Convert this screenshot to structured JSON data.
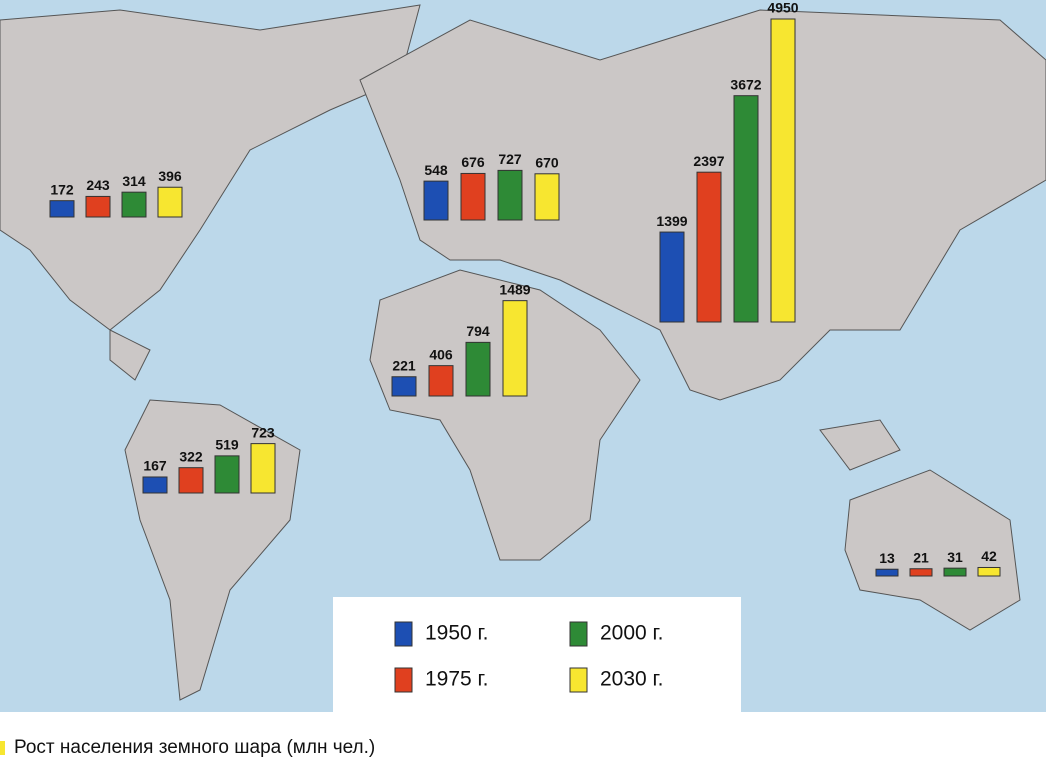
{
  "chart_data": {
    "type": "bar",
    "title": "Рост населения земного шара (млн чел.)",
    "series": [
      {
        "name": "1950 г.",
        "color": "#1d4fb3",
        "values": [
          172,
          548,
          221,
          167,
          1399,
          13
        ]
      },
      {
        "name": "1975 г.",
        "color": "#e0401f",
        "values": [
          243,
          676,
          406,
          322,
          2397,
          21
        ]
      },
      {
        "name": "2000 г.",
        "color": "#2e8a36",
        "values": [
          314,
          727,
          794,
          519,
          3672,
          31
        ]
      },
      {
        "name": "2030 г.",
        "color": "#f7e630",
        "values": [
          396,
          670,
          1489,
          723,
          4950,
          42
        ]
      }
    ]
  }
}
